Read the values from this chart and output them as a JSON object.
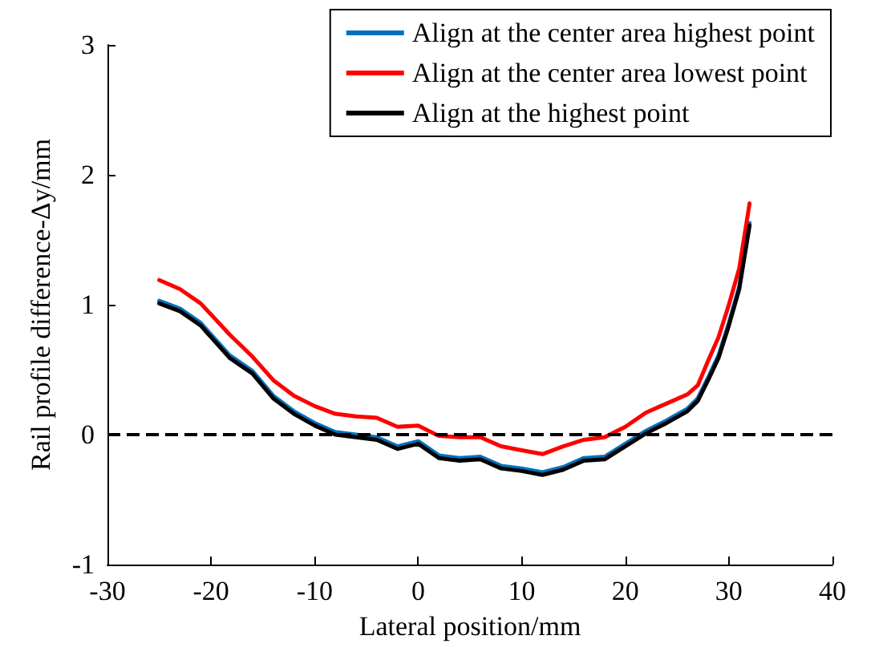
{
  "chart_data": {
    "type": "line",
    "xlabel": "Lateral position/mm",
    "ylabel": "Rail profile difference-Δy/mm",
    "x": [
      -25,
      -23,
      -21,
      -18.2,
      -16,
      -14,
      -12,
      -10,
      -8,
      -6,
      -4,
      -2,
      0,
      2,
      4,
      6,
      8,
      10,
      12,
      14,
      16,
      18,
      20,
      22,
      24,
      26,
      27,
      28,
      29,
      30,
      31,
      32
    ],
    "series": [
      {
        "name": "Align at the center area highest point",
        "color": "#0072bd",
        "values": [
          1.03,
          0.97,
          0.86,
          0.61,
          0.49,
          0.3,
          0.18,
          0.09,
          0.02,
          0,
          -0.02,
          -0.09,
          -0.05,
          -0.16,
          -0.18,
          -0.17,
          -0.24,
          -0.26,
          -0.29,
          -0.25,
          -0.18,
          -0.17,
          -0.07,
          0.03,
          0.11,
          0.2,
          0.28,
          0.44,
          0.61,
          0.86,
          1.14,
          1.63
        ]
      },
      {
        "name": "Align at the center area lowest point",
        "color": "#ff0000",
        "values": [
          1.19,
          1.12,
          1.01,
          0.77,
          0.6,
          0.42,
          0.3,
          0.22,
          0.16,
          0.14,
          0.13,
          0.06,
          0.07,
          -0.01,
          -0.02,
          -0.02,
          -0.09,
          -0.12,
          -0.15,
          -0.09,
          -0.04,
          -0.02,
          0.06,
          0.17,
          0.24,
          0.31,
          0.38,
          0.57,
          0.75,
          1,
          1.28,
          1.78
        ]
      },
      {
        "name": "Align at the highest point",
        "color": "#000000",
        "values": [
          1.01,
          0.95,
          0.84,
          0.59,
          0.47,
          0.28,
          0.16,
          0.07,
          0,
          -0.02,
          -0.04,
          -0.11,
          -0.07,
          -0.18,
          -0.2,
          -0.19,
          -0.26,
          -0.28,
          -0.31,
          -0.27,
          -0.2,
          -0.19,
          -0.09,
          0.01,
          0.09,
          0.18,
          0.26,
          0.42,
          0.59,
          0.84,
          1.12,
          1.61
        ]
      }
    ],
    "xlim": [
      -30,
      40
    ],
    "xticks": [
      -30,
      -20,
      -10,
      0,
      10,
      20,
      30,
      40
    ],
    "ylim": [
      -1,
      3
    ],
    "yticks": [
      -1,
      0,
      1,
      2,
      3
    ],
    "ref_lines": [
      {
        "axis": "y",
        "value": 0,
        "color": "#000000",
        "line_style": "dashed"
      }
    ],
    "grid": false,
    "legend": "top right",
    "marker": "none",
    "line_style": "solid"
  }
}
